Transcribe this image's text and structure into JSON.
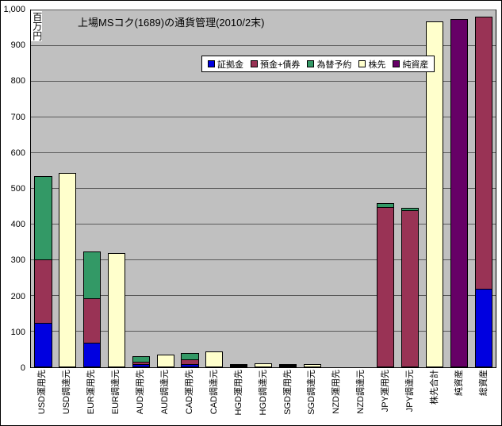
{
  "chart_data": {
    "type": "bar",
    "stacked": true,
    "title": "上場MSコク(1689)の通貨管理(2010/2末)",
    "y_unit_label": "百万円",
    "ylim": [
      0,
      1000
    ],
    "y_tick_step": 100,
    "y_tick_labels": [
      "1,000",
      "900",
      "800",
      "700",
      "600",
      "500",
      "400",
      "300",
      "200",
      "100",
      "0"
    ],
    "grid": true,
    "plot_bg_color": "#C0C0C0",
    "gridline_color": "#5a5a5a",
    "legend_position": "top-inset",
    "categories": [
      "USD運用先",
      "USD調達元",
      "EUR運用先",
      "EUR調達元",
      "AUD運用先",
      "AUD調達元",
      "CAD運用先",
      "CAD調達元",
      "HGD運用先",
      "HGD調達元",
      "SGD運用先",
      "SGD調達元",
      "NZD運用先",
      "NZD調達元",
      "JPY運用先",
      "JPY調達元",
      "株先合計",
      "純資産",
      "総資産"
    ],
    "series": [
      {
        "name": "証拠金",
        "color": "#0000E0",
        "values": [
          125,
          0,
          70,
          0,
          8,
          0,
          10,
          0,
          3,
          0,
          2,
          0,
          0,
          0,
          0,
          0,
          0,
          0,
          220
        ]
      },
      {
        "name": "預金+債券",
        "color": "#993355",
        "values": [
          180,
          0,
          125,
          0,
          10,
          0,
          15,
          0,
          4,
          0,
          3,
          0,
          0,
          0,
          450,
          440,
          0,
          0,
          765
        ]
      },
      {
        "name": "為替予約",
        "color": "#339966",
        "values": [
          235,
          0,
          135,
          0,
          17,
          0,
          20,
          0,
          5,
          0,
          3,
          0,
          0,
          0,
          12,
          10,
          0,
          0,
          0
        ]
      },
      {
        "name": "株先",
        "color": "#FFFFCC",
        "values": [
          0,
          545,
          0,
          320,
          0,
          35,
          0,
          45,
          0,
          12,
          0,
          8,
          0,
          0,
          0,
          0,
          970,
          0,
          0
        ]
      },
      {
        "name": "純資産",
        "color": "#660066",
        "values": [
          0,
          0,
          0,
          0,
          0,
          0,
          0,
          0,
          0,
          0,
          0,
          0,
          0,
          0,
          0,
          0,
          0,
          975,
          0
        ]
      }
    ]
  }
}
